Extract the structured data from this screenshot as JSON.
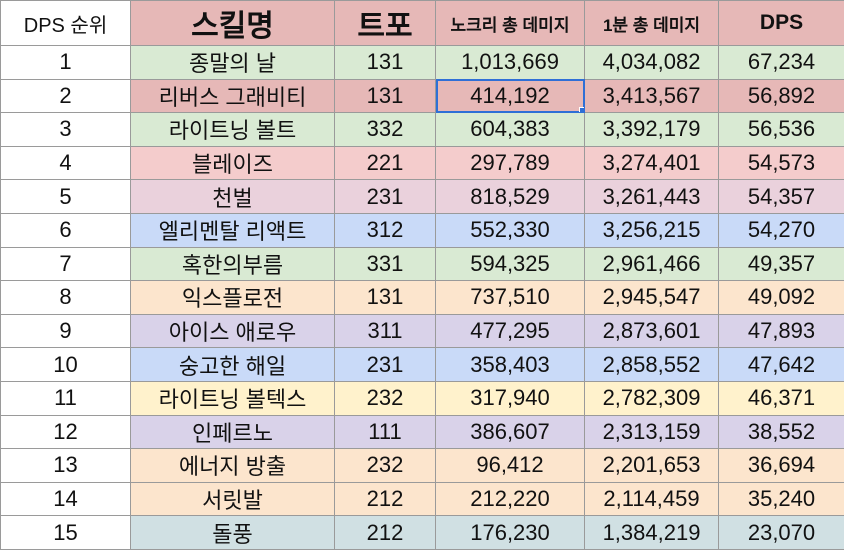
{
  "headers": [
    "DPS 순위",
    "스킬명",
    "트포",
    "노크리 총 데미지",
    "1분 총 데미지",
    "DPS"
  ],
  "rows": [
    {
      "rank": "1",
      "skill": "종말의 날",
      "tripod": "131",
      "nocrit": "1,013,669",
      "min1": "4,034,082",
      "dps": "67,234",
      "color": "#d9ead3"
    },
    {
      "rank": "2",
      "skill": "리버스 그래비티",
      "tripod": "131",
      "nocrit": "414,192",
      "min1": "3,413,567",
      "dps": "56,892",
      "color": "#e6b8b7"
    },
    {
      "rank": "3",
      "skill": "라이트닝 볼트",
      "tripod": "332",
      "nocrit": "604,383",
      "min1": "3,392,179",
      "dps": "56,536",
      "color": "#d9ead3"
    },
    {
      "rank": "4",
      "skill": "블레이즈",
      "tripod": "221",
      "nocrit": "297,789",
      "min1": "3,274,401",
      "dps": "54,573",
      "color": "#f4cccc"
    },
    {
      "rank": "5",
      "skill": "천벌",
      "tripod": "231",
      "nocrit": "818,529",
      "min1": "3,261,443",
      "dps": "54,357",
      "color": "#ead1dc"
    },
    {
      "rank": "6",
      "skill": "엘리멘탈 리액트",
      "tripod": "312",
      "nocrit": "552,330",
      "min1": "3,256,215",
      "dps": "54,270",
      "color": "#c9daf8"
    },
    {
      "rank": "7",
      "skill": "혹한의부름",
      "tripod": "331",
      "nocrit": "594,325",
      "min1": "2,961,466",
      "dps": "49,357",
      "color": "#d9ead3"
    },
    {
      "rank": "8",
      "skill": "익스플로전",
      "tripod": "131",
      "nocrit": "737,510",
      "min1": "2,945,547",
      "dps": "49,092",
      "color": "#fce5cd"
    },
    {
      "rank": "9",
      "skill": "아이스 애로우",
      "tripod": "311",
      "nocrit": "477,295",
      "min1": "2,873,601",
      "dps": "47,893",
      "color": "#d9d2e9"
    },
    {
      "rank": "10",
      "skill": "숭고한 해일",
      "tripod": "231",
      "nocrit": "358,403",
      "min1": "2,858,552",
      "dps": "47,642",
      "color": "#c9daf8"
    },
    {
      "rank": "11",
      "skill": "라이트닝 볼텍스",
      "tripod": "232",
      "nocrit": "317,940",
      "min1": "2,782,309",
      "dps": "46,371",
      "color": "#fff2cc"
    },
    {
      "rank": "12",
      "skill": "인페르노",
      "tripod": "111",
      "nocrit": "386,607",
      "min1": "2,313,159",
      "dps": "38,552",
      "color": "#d9d2e9"
    },
    {
      "rank": "13",
      "skill": "에너지 방출",
      "tripod": "232",
      "nocrit": "96,412",
      "min1": "2,201,653",
      "dps": "36,694",
      "color": "#fce5cd"
    },
    {
      "rank": "14",
      "skill": "서릿발",
      "tripod": "212",
      "nocrit": "212,220",
      "min1": "2,114,459",
      "dps": "35,240",
      "color": "#fce5cd"
    },
    {
      "rank": "15",
      "skill": "돌풍",
      "tripod": "212",
      "nocrit": "176,230",
      "min1": "1,384,219",
      "dps": "23,070",
      "color": "#d0e0e3"
    }
  ],
  "selected_cell": {
    "row": "2",
    "column": "노크리 총 데미지"
  },
  "selection_color": "#2f6fd6"
}
